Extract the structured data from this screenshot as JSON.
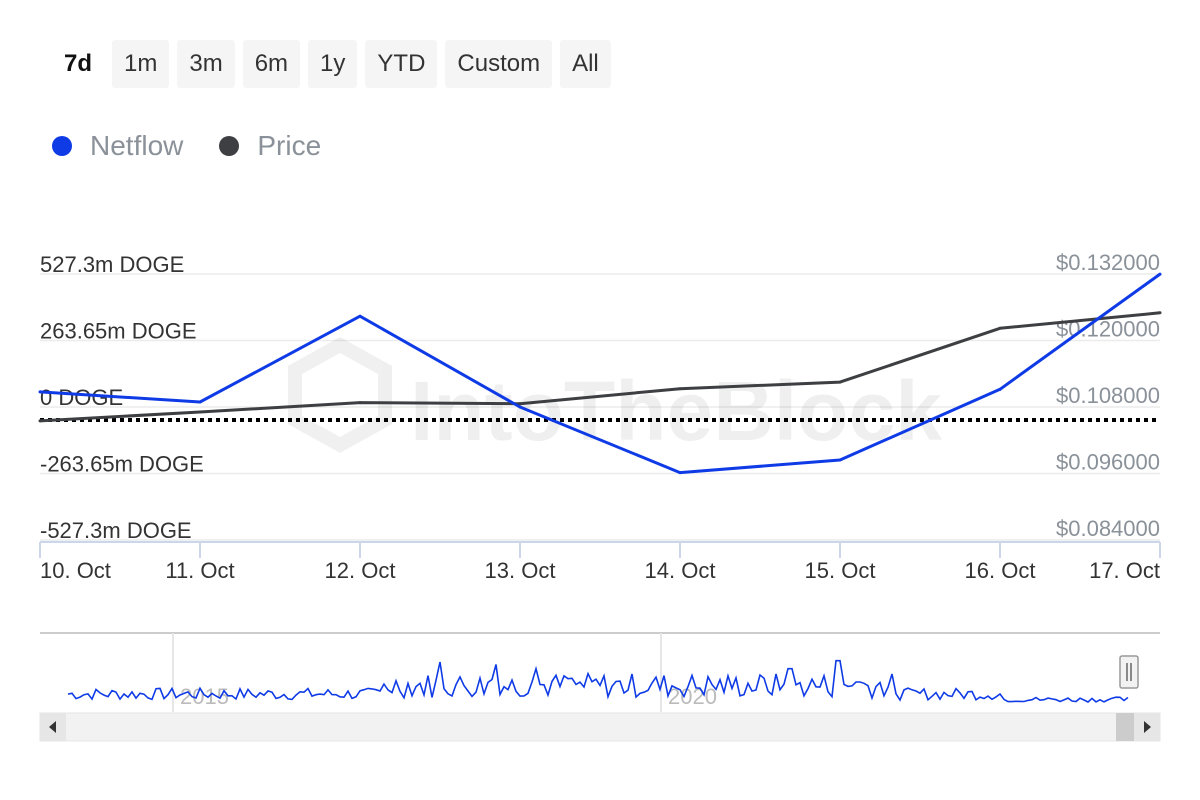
{
  "range_buttons": [
    {
      "label": "7d",
      "active": true
    },
    {
      "label": "1m",
      "active": false
    },
    {
      "label": "3m",
      "active": false
    },
    {
      "label": "6m",
      "active": false
    },
    {
      "label": "1y",
      "active": false
    },
    {
      "label": "YTD",
      "active": false
    },
    {
      "label": "Custom",
      "active": false
    },
    {
      "label": "All",
      "active": false
    }
  ],
  "legend": [
    {
      "name": "Netflow",
      "color": "#0f3be6"
    },
    {
      "name": "Price",
      "color": "#3d3f42"
    }
  ],
  "watermark": "IntoTheBlock",
  "chart_data": {
    "type": "line",
    "x": [
      "10. Oct",
      "11. Oct",
      "12. Oct",
      "13. Oct",
      "14. Oct",
      "15. Oct",
      "16. Oct",
      "17. Oct"
    ],
    "left_axis": {
      "ticks": [
        "527.3m DOGE",
        "263.65m DOGE",
        "0 DOGE",
        "-263.65m DOGE",
        "-527.3m DOGE"
      ],
      "values": [
        527.3,
        263.65,
        0,
        -263.65,
        -527.3
      ],
      "unit": "m DOGE",
      "ylim": [
        -527.3,
        527.3
      ]
    },
    "right_axis": {
      "ticks": [
        "$0.132000",
        "$0.120000",
        "$0.108000",
        "$0.096000",
        "$0.084000"
      ],
      "values": [
        0.132,
        0.12,
        0.108,
        0.096,
        0.084
      ],
      "ylim": [
        0.084,
        0.132
      ]
    },
    "series": [
      {
        "name": "Netflow",
        "axis": "left",
        "color": "#0f3be6",
        "values": [
          60,
          20,
          360,
          0,
          -260,
          -210,
          70,
          527
        ]
      },
      {
        "name": "Price",
        "axis": "right",
        "color": "#3d3f42",
        "values": [
          0.1055,
          0.1071,
          0.1088,
          0.1086,
          0.1113,
          0.1125,
          0.1222,
          0.125
        ]
      }
    ],
    "zero_line": {
      "style": "dotted",
      "color": "#000000"
    },
    "grid": true,
    "navigator": {
      "labels": [
        "2015",
        "2020"
      ]
    }
  }
}
